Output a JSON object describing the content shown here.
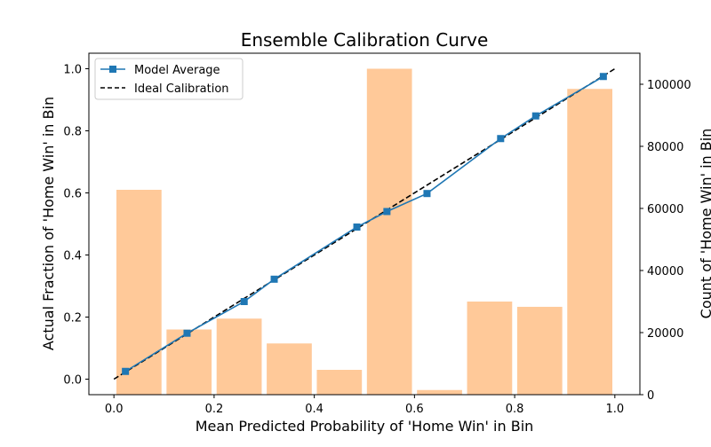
{
  "chart_data": {
    "type": "bar+line",
    "title": "Ensemble Calibration Curve",
    "xlabel": "Mean Predicted Probability of 'Home Win' in Bin",
    "ylabel": "Actual Fraction of 'Home Win' in Bin",
    "y2label": "Count of 'Home Win' in Bin",
    "xlim": [
      -0.05,
      1.05
    ],
    "ylim": [
      -0.05,
      1.05
    ],
    "y2lim": [
      0,
      110000
    ],
    "xticks": [
      "0.0",
      "0.2",
      "0.4",
      "0.6",
      "0.8",
      "1.0"
    ],
    "yticks": [
      "0.0",
      "0.2",
      "0.4",
      "0.6",
      "0.8",
      "1.0"
    ],
    "y2ticks": [
      "0",
      "20000",
      "40000",
      "60000",
      "80000",
      "100000"
    ],
    "grid": false,
    "legend_position": "top-left",
    "histogram": {
      "color": "#ffc999",
      "bin_width": 0.1,
      "bins": [
        {
          "x": 0.05,
          "count": 66000
        },
        {
          "x": 0.15,
          "count": 21000
        },
        {
          "x": 0.25,
          "count": 24500
        },
        {
          "x": 0.35,
          "count": 16500
        },
        {
          "x": 0.45,
          "count": 8000
        },
        {
          "x": 0.55,
          "count": 105000
        },
        {
          "x": 0.65,
          "count": 1500
        },
        {
          "x": 0.75,
          "count": 30000
        },
        {
          "x": 0.85,
          "count": 28300
        },
        {
          "x": 0.95,
          "count": 98500
        }
      ]
    },
    "series": [
      {
        "name": "Model Average",
        "color": "#1f77b4",
        "marker": "square",
        "points": [
          {
            "x": 0.023,
            "y": 0.025
          },
          {
            "x": 0.146,
            "y": 0.148
          },
          {
            "x": 0.26,
            "y": 0.25
          },
          {
            "x": 0.32,
            "y": 0.322
          },
          {
            "x": 0.485,
            "y": 0.49
          },
          {
            "x": 0.545,
            "y": 0.54
          },
          {
            "x": 0.625,
            "y": 0.598
          },
          {
            "x": 0.772,
            "y": 0.775
          },
          {
            "x": 0.842,
            "y": 0.848
          },
          {
            "x": 0.977,
            "y": 0.975
          }
        ]
      },
      {
        "name": "Ideal Calibration",
        "color": "#000000",
        "dash": "dashed",
        "points": [
          {
            "x": 0.0,
            "y": 0.0
          },
          {
            "x": 1.0,
            "y": 1.0
          }
        ]
      }
    ]
  }
}
